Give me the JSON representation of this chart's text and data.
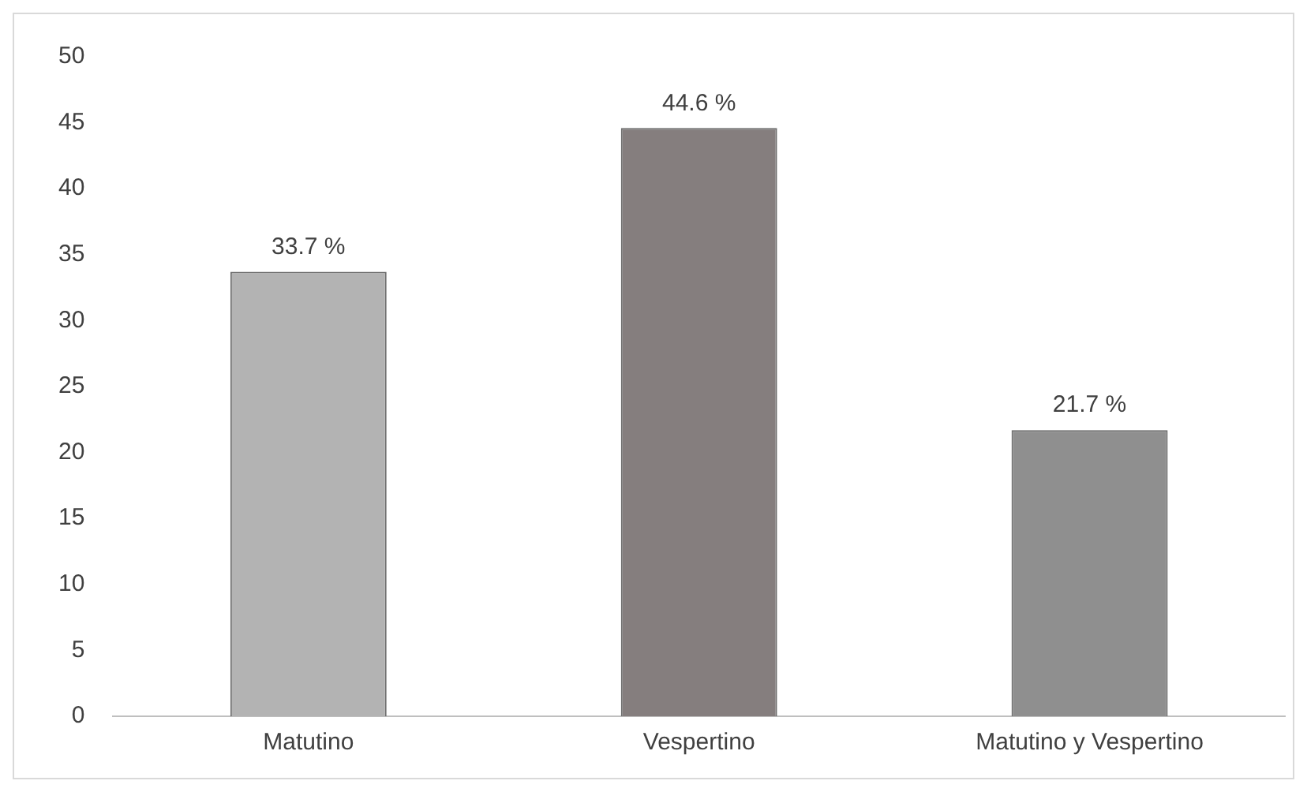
{
  "chart_data": {
    "type": "bar",
    "categories": [
      "Matutino",
      "Vespertino",
      "Matutino y Vespertino"
    ],
    "values": [
      33.7,
      44.6,
      21.7
    ],
    "colors": [
      "#b3b3b3",
      "#857e7e",
      "#8f8f8f"
    ],
    "value_labels": [
      "33.7 %",
      "44.6 %",
      "21.7 %"
    ],
    "ylim": [
      0,
      50
    ],
    "yticks": [
      0,
      5,
      10,
      15,
      20,
      25,
      30,
      35,
      40,
      45,
      50
    ],
    "grid": false,
    "legend": false
  }
}
